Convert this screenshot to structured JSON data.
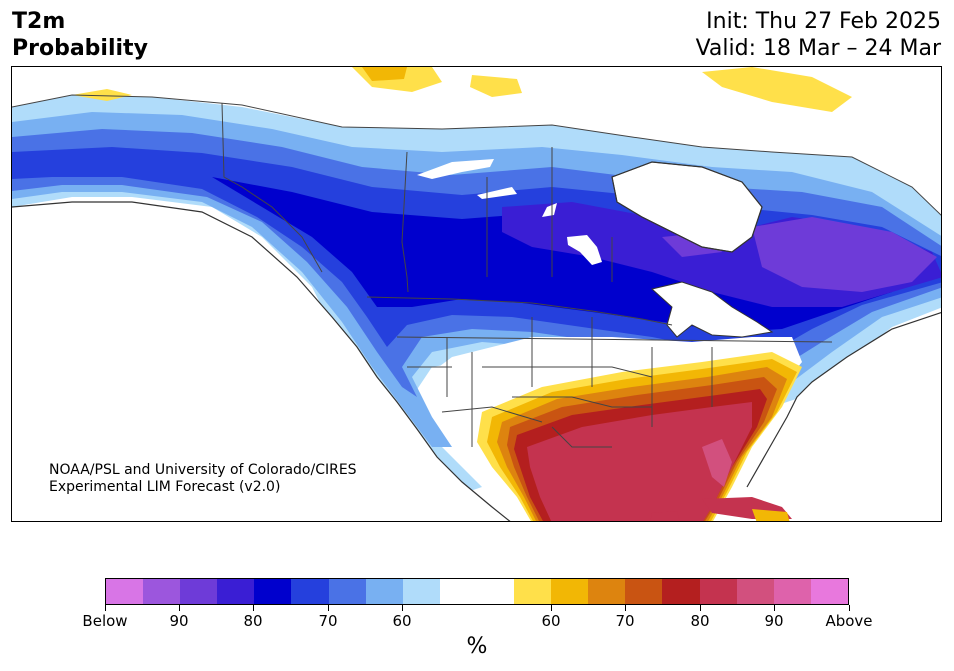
{
  "header": {
    "title_line1": "T2m",
    "title_line2": "Probability",
    "init": "Init: Thu 27 Feb 2025",
    "valid": "Valid: 18 Mar – 24 Mar"
  },
  "map": {
    "credit_line1": "NOAA/PSL and University of Colorado/CIRES",
    "credit_line2": "Experimental LIM Forecast (v2.0)"
  },
  "colorbar": {
    "unit": "%",
    "colors": [
      "#d875e6",
      "#9c56dd",
      "#6e3bd8",
      "#3a1ed4",
      "#0000cd",
      "#2540dd",
      "#4a72e6",
      "#78b0f2",
      "#b0dcfa",
      "#ffffff",
      "#ffffff",
      "#ffe04a",
      "#f2b705",
      "#dd840f",
      "#c95412",
      "#b41f1f",
      "#c4334f",
      "#d2507e",
      "#de62ab",
      "#e878dd"
    ],
    "ticks": [
      "Below",
      "90",
      "80",
      "70",
      "60",
      "60",
      "70",
      "80",
      "90",
      "Above"
    ]
  }
}
